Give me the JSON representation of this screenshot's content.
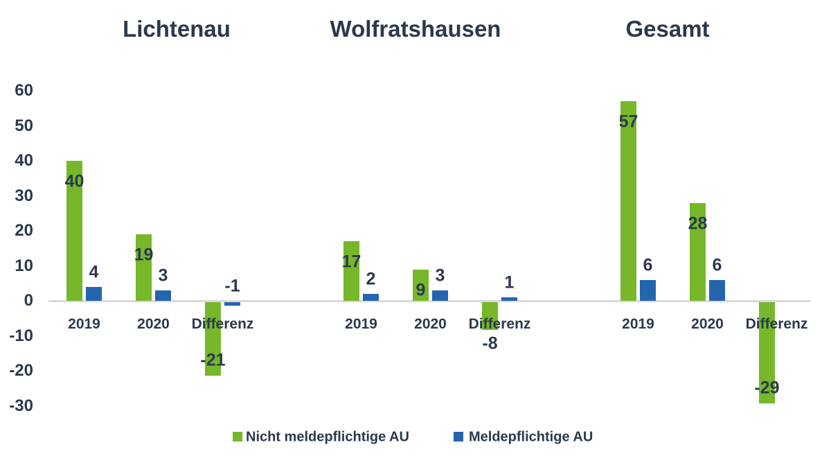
{
  "chart_data": {
    "type": "bar",
    "groups": [
      {
        "title": "Lichtenau",
        "categories": [
          "2019",
          "2020",
          "Differenz"
        ],
        "series": [
          {
            "name": "Nicht meldepflichtige AU",
            "values": [
              40,
              19,
              -21
            ]
          },
          {
            "name": "Meldepflichtige AU",
            "values": [
              4,
              3,
              -1
            ]
          }
        ]
      },
      {
        "title": "Wolfratshausen",
        "categories": [
          "2019",
          "2020",
          "Differenz"
        ],
        "series": [
          {
            "name": "Nicht meldepflichtige AU",
            "values": [
              17,
              9,
              -8
            ]
          },
          {
            "name": "Meldepflichtige AU",
            "values": [
              2,
              3,
              1
            ]
          }
        ]
      },
      {
        "title": "Gesamt",
        "categories": [
          "2019",
          "2020",
          "Differenz"
        ],
        "series": [
          {
            "name": "Nicht meldepflichtige AU",
            "values": [
              57,
              28,
              -29
            ]
          },
          {
            "name": "Meldepflichtige AU",
            "values": [
              6,
              6,
              0
            ]
          }
        ]
      }
    ],
    "legend": [
      {
        "label": "Nicht meldepflichtige AU",
        "color": "#76B82A"
      },
      {
        "label": "Meldepflichtige AU",
        "color": "#2565AE"
      }
    ],
    "colors": {
      "series_green": "#76B82A",
      "series_blue": "#2565AE",
      "text": "#2B394D",
      "axis_line": "#D9D9D9"
    },
    "ylim": [
      -30,
      60
    ],
    "yticks": [
      60,
      50,
      40,
      30,
      20,
      10,
      0,
      -10,
      -20,
      -30
    ],
    "grid": false,
    "data_labels": true,
    "legend_position": "bottom"
  }
}
